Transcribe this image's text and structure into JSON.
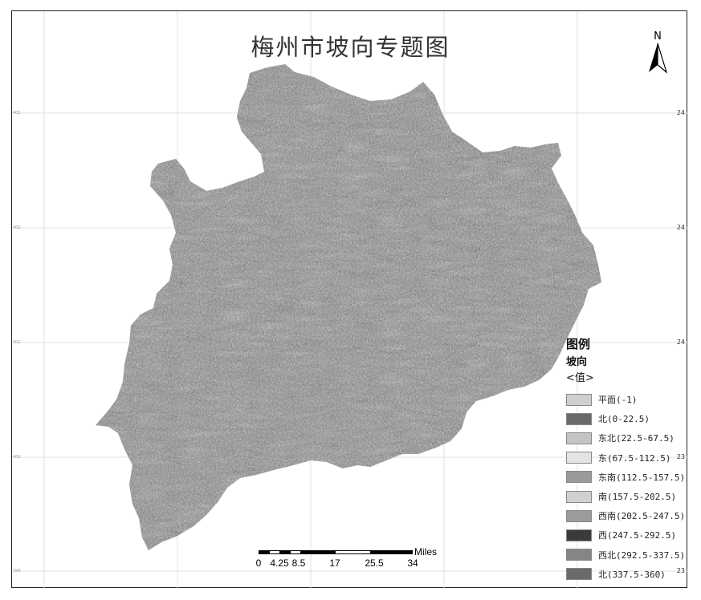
{
  "map": {
    "title": "梅州市坡向专题图",
    "north_label": "N",
    "lat_labels_right": [
      "24",
      "24",
      "24",
      "23",
      "23"
    ],
    "lat_labels_left": [
      "403",
      "402",
      "401",
      "400",
      "399"
    ]
  },
  "legend": {
    "title": "图例",
    "subtitle": "坡向",
    "value_label": "<值>",
    "items": [
      {
        "label": "平面(-1)",
        "color": "#cfcfcf"
      },
      {
        "label": "北(0-22.5)",
        "color": "#6a6a6a"
      },
      {
        "label": "东北(22.5-67.5)",
        "color": "#c4c4c4"
      },
      {
        "label": "东(67.5-112.5)",
        "color": "#e4e4e4"
      },
      {
        "label": "东南(112.5-157.5)",
        "color": "#9a9a9a"
      },
      {
        "label": "南(157.5-202.5)",
        "color": "#d0d0d0"
      },
      {
        "label": "西南(202.5-247.5)",
        "color": "#9c9c9c"
      },
      {
        "label": "西(247.5-292.5)",
        "color": "#3a3a3a"
      },
      {
        "label": "西北(292.5-337.5)",
        "color": "#858585"
      },
      {
        "label": "北(337.5-360)",
        "color": "#6a6a6a"
      }
    ]
  },
  "scale_bar": {
    "unit": "Miles",
    "ticks": [
      "0",
      "4.25",
      "8.5",
      "17",
      "25.5",
      "34"
    ]
  }
}
